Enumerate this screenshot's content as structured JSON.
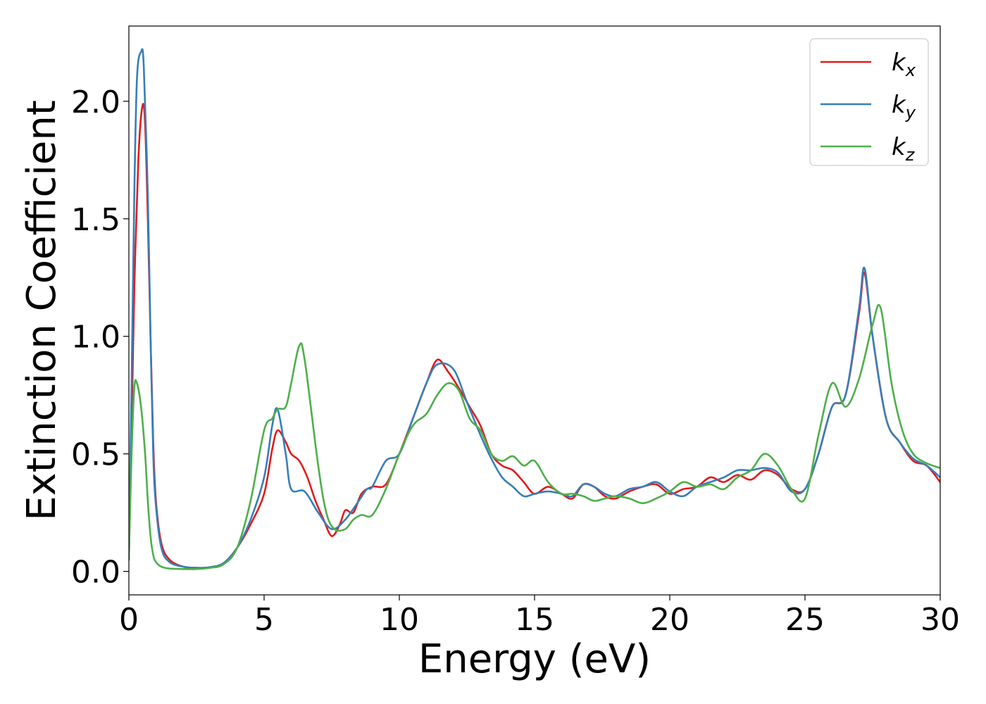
{
  "chart_data": {
    "type": "line",
    "title": "",
    "xlabel": "Energy (eV)",
    "ylabel": "Extinction Coefficient",
    "xlim": [
      0,
      30
    ],
    "ylim": [
      -0.1,
      2.32
    ],
    "x_ticks": [
      0,
      5,
      10,
      15,
      20,
      25,
      30
    ],
    "y_ticks": [
      0.0,
      0.5,
      1.0,
      1.5,
      2.0
    ],
    "x_tick_labels": [
      "0",
      "5",
      "10",
      "15",
      "20",
      "25",
      "30"
    ],
    "y_tick_labels": [
      "0.0",
      "0.5",
      "1.0",
      "1.5",
      "2.0"
    ],
    "grid": false,
    "legend_position": "top-right",
    "series": [
      {
        "name": "k_x",
        "legend_base": "k",
        "legend_sub": "x",
        "color": "#e41a1c",
        "points": [
          [
            0,
            0.05
          ],
          [
            0.1,
            0.6
          ],
          [
            0.2,
            1.2
          ],
          [
            0.35,
            1.75
          ],
          [
            0.5,
            1.98
          ],
          [
            0.6,
            1.9
          ],
          [
            0.7,
            1.5
          ],
          [
            0.8,
            1.0
          ],
          [
            0.9,
            0.55
          ],
          [
            1.0,
            0.3
          ],
          [
            1.2,
            0.12
          ],
          [
            1.5,
            0.05
          ],
          [
            2.0,
            0.02
          ],
          [
            2.5,
            0.015
          ],
          [
            3.0,
            0.018
          ],
          [
            3.5,
            0.035
          ],
          [
            4.0,
            0.1
          ],
          [
            4.5,
            0.2
          ],
          [
            5.0,
            0.33
          ],
          [
            5.3,
            0.52
          ],
          [
            5.5,
            0.6
          ],
          [
            5.8,
            0.55
          ],
          [
            6.0,
            0.5
          ],
          [
            6.3,
            0.47
          ],
          [
            6.6,
            0.4
          ],
          [
            6.9,
            0.3
          ],
          [
            7.2,
            0.22
          ],
          [
            7.5,
            0.15
          ],
          [
            7.8,
            0.2
          ],
          [
            8.0,
            0.26
          ],
          [
            8.3,
            0.25
          ],
          [
            8.6,
            0.33
          ],
          [
            9.0,
            0.36
          ],
          [
            9.5,
            0.37
          ],
          [
            10.0,
            0.5
          ],
          [
            10.5,
            0.65
          ],
          [
            11.0,
            0.8
          ],
          [
            11.4,
            0.9
          ],
          [
            11.8,
            0.85
          ],
          [
            12.2,
            0.78
          ],
          [
            12.6,
            0.7
          ],
          [
            13.0,
            0.62
          ],
          [
            13.4,
            0.5
          ],
          [
            13.8,
            0.45
          ],
          [
            14.2,
            0.43
          ],
          [
            14.6,
            0.38
          ],
          [
            15.0,
            0.33
          ],
          [
            15.5,
            0.36
          ],
          [
            16.0,
            0.33
          ],
          [
            16.4,
            0.31
          ],
          [
            16.8,
            0.37
          ],
          [
            17.2,
            0.36
          ],
          [
            17.6,
            0.32
          ],
          [
            18.0,
            0.31
          ],
          [
            18.5,
            0.34
          ],
          [
            19.0,
            0.36
          ],
          [
            19.5,
            0.37
          ],
          [
            20.0,
            0.33
          ],
          [
            20.5,
            0.35
          ],
          [
            21.0,
            0.36
          ],
          [
            21.5,
            0.4
          ],
          [
            22.0,
            0.38
          ],
          [
            22.5,
            0.41
          ],
          [
            23.0,
            0.39
          ],
          [
            23.5,
            0.43
          ],
          [
            24.0,
            0.41
          ],
          [
            24.5,
            0.35
          ],
          [
            25.0,
            0.35
          ],
          [
            25.5,
            0.5
          ],
          [
            26.0,
            0.7
          ],
          [
            26.5,
            0.75
          ],
          [
            27.0,
            1.1
          ],
          [
            27.2,
            1.27
          ],
          [
            27.5,
            1.0
          ],
          [
            28.0,
            0.65
          ],
          [
            28.5,
            0.55
          ],
          [
            29.0,
            0.47
          ],
          [
            29.5,
            0.45
          ],
          [
            30.0,
            0.38
          ]
        ]
      },
      {
        "name": "k_y",
        "legend_base": "k",
        "legend_sub": "y",
        "color": "#377eb8",
        "points": [
          [
            0,
            0.05
          ],
          [
            0.1,
            0.8
          ],
          [
            0.2,
            1.6
          ],
          [
            0.3,
            2.1
          ],
          [
            0.45,
            2.21
          ],
          [
            0.55,
            2.15
          ],
          [
            0.7,
            1.6
          ],
          [
            0.8,
            1.0
          ],
          [
            0.9,
            0.5
          ],
          [
            1.0,
            0.28
          ],
          [
            1.2,
            0.1
          ],
          [
            1.5,
            0.04
          ],
          [
            2.0,
            0.02
          ],
          [
            2.5,
            0.015
          ],
          [
            3.0,
            0.018
          ],
          [
            3.5,
            0.035
          ],
          [
            4.0,
            0.1
          ],
          [
            4.5,
            0.22
          ],
          [
            5.0,
            0.4
          ],
          [
            5.3,
            0.62
          ],
          [
            5.5,
            0.69
          ],
          [
            5.8,
            0.5
          ],
          [
            6.0,
            0.35
          ],
          [
            6.5,
            0.34
          ],
          [
            7.0,
            0.25
          ],
          [
            7.5,
            0.18
          ],
          [
            8.0,
            0.22
          ],
          [
            8.5,
            0.3
          ],
          [
            8.8,
            0.35
          ],
          [
            9.0,
            0.36
          ],
          [
            9.5,
            0.47
          ],
          [
            10.0,
            0.5
          ],
          [
            10.5,
            0.65
          ],
          [
            11.0,
            0.8
          ],
          [
            11.4,
            0.88
          ],
          [
            12.0,
            0.86
          ],
          [
            12.5,
            0.72
          ],
          [
            13.0,
            0.58
          ],
          [
            13.4,
            0.48
          ],
          [
            13.8,
            0.4
          ],
          [
            14.2,
            0.36
          ],
          [
            14.6,
            0.32
          ],
          [
            15.0,
            0.33
          ],
          [
            15.5,
            0.34
          ],
          [
            16.0,
            0.33
          ],
          [
            16.4,
            0.32
          ],
          [
            16.8,
            0.37
          ],
          [
            17.2,
            0.36
          ],
          [
            17.6,
            0.33
          ],
          [
            18.0,
            0.32
          ],
          [
            18.5,
            0.35
          ],
          [
            19.0,
            0.36
          ],
          [
            19.5,
            0.38
          ],
          [
            20.0,
            0.34
          ],
          [
            20.5,
            0.32
          ],
          [
            21.0,
            0.36
          ],
          [
            21.5,
            0.38
          ],
          [
            22.0,
            0.4
          ],
          [
            22.5,
            0.43
          ],
          [
            23.0,
            0.43
          ],
          [
            23.5,
            0.44
          ],
          [
            24.0,
            0.42
          ],
          [
            24.5,
            0.34
          ],
          [
            25.0,
            0.35
          ],
          [
            25.5,
            0.5
          ],
          [
            26.0,
            0.7
          ],
          [
            26.5,
            0.75
          ],
          [
            27.0,
            1.12
          ],
          [
            27.2,
            1.29
          ],
          [
            27.5,
            1.0
          ],
          [
            28.0,
            0.65
          ],
          [
            28.5,
            0.55
          ],
          [
            29.0,
            0.48
          ],
          [
            29.5,
            0.45
          ],
          [
            30.0,
            0.4
          ]
        ]
      },
      {
        "name": "k_z",
        "legend_base": "k",
        "legend_sub": "z",
        "color": "#4daf4a",
        "points": [
          [
            0,
            0.05
          ],
          [
            0.1,
            0.5
          ],
          [
            0.2,
            0.78
          ],
          [
            0.3,
            0.8
          ],
          [
            0.45,
            0.7
          ],
          [
            0.6,
            0.5
          ],
          [
            0.7,
            0.3
          ],
          [
            0.8,
            0.15
          ],
          [
            0.9,
            0.07
          ],
          [
            1.0,
            0.04
          ],
          [
            1.2,
            0.02
          ],
          [
            1.5,
            0.012
          ],
          [
            2.0,
            0.01
          ],
          [
            2.5,
            0.01
          ],
          [
            3.0,
            0.015
          ],
          [
            3.5,
            0.03
          ],
          [
            4.0,
            0.1
          ],
          [
            4.5,
            0.3
          ],
          [
            5.0,
            0.6
          ],
          [
            5.3,
            0.65
          ],
          [
            5.5,
            0.69
          ],
          [
            5.8,
            0.7
          ],
          [
            6.0,
            0.8
          ],
          [
            6.3,
            0.96
          ],
          [
            6.5,
            0.9
          ],
          [
            7.0,
            0.45
          ],
          [
            7.3,
            0.25
          ],
          [
            7.6,
            0.18
          ],
          [
            8.0,
            0.18
          ],
          [
            8.3,
            0.22
          ],
          [
            8.6,
            0.24
          ],
          [
            9.0,
            0.24
          ],
          [
            9.5,
            0.35
          ],
          [
            10.0,
            0.5
          ],
          [
            10.5,
            0.62
          ],
          [
            11.0,
            0.67
          ],
          [
            11.4,
            0.75
          ],
          [
            11.8,
            0.8
          ],
          [
            12.2,
            0.77
          ],
          [
            12.6,
            0.65
          ],
          [
            13.0,
            0.6
          ],
          [
            13.4,
            0.5
          ],
          [
            13.8,
            0.47
          ],
          [
            14.2,
            0.49
          ],
          [
            14.6,
            0.45
          ],
          [
            15.0,
            0.47
          ],
          [
            15.5,
            0.38
          ],
          [
            16.0,
            0.33
          ],
          [
            16.4,
            0.33
          ],
          [
            16.8,
            0.32
          ],
          [
            17.2,
            0.3
          ],
          [
            17.6,
            0.31
          ],
          [
            18.0,
            0.32
          ],
          [
            18.5,
            0.31
          ],
          [
            19.0,
            0.29
          ],
          [
            19.5,
            0.31
          ],
          [
            20.0,
            0.34
          ],
          [
            20.5,
            0.38
          ],
          [
            21.0,
            0.36
          ],
          [
            21.5,
            0.37
          ],
          [
            22.0,
            0.35
          ],
          [
            22.5,
            0.4
          ],
          [
            23.0,
            0.43
          ],
          [
            23.5,
            0.5
          ],
          [
            24.0,
            0.45
          ],
          [
            24.5,
            0.35
          ],
          [
            25.0,
            0.31
          ],
          [
            25.5,
            0.58
          ],
          [
            26.0,
            0.8
          ],
          [
            26.5,
            0.7
          ],
          [
            27.0,
            0.82
          ],
          [
            27.5,
            1.05
          ],
          [
            27.8,
            1.12
          ],
          [
            28.2,
            0.8
          ],
          [
            28.6,
            0.6
          ],
          [
            29.0,
            0.5
          ],
          [
            29.5,
            0.46
          ],
          [
            30.0,
            0.44
          ]
        ]
      }
    ]
  }
}
